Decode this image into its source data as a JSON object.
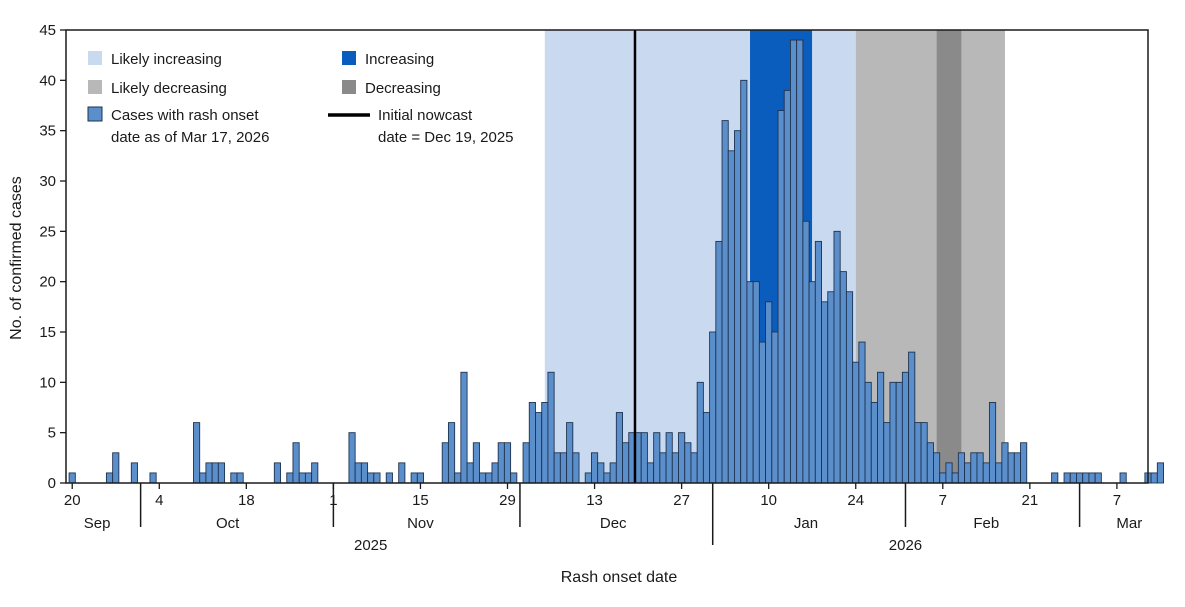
{
  "chart_data": {
    "type": "bar",
    "xlabel": "Rash onset date",
    "ylabel": "No. of confirmed cases",
    "ylim": [
      0,
      45
    ],
    "y_ticks": [
      0,
      5,
      10,
      15,
      20,
      25,
      30,
      35,
      40,
      45
    ],
    "x_range": [
      "2025-09-19",
      "2026-03-12"
    ],
    "x_ticks": [
      {
        "date": "2025-09-20",
        "label": "20"
      },
      {
        "date": "2025-10-04",
        "label": "4"
      },
      {
        "date": "2025-10-18",
        "label": "18"
      },
      {
        "date": "2025-11-01",
        "label": "1"
      },
      {
        "date": "2025-11-15",
        "label": "15"
      },
      {
        "date": "2025-11-29",
        "label": "29"
      },
      {
        "date": "2025-12-13",
        "label": "13"
      },
      {
        "date": "2025-12-27",
        "label": "27"
      },
      {
        "date": "2026-01-10",
        "label": "10"
      },
      {
        "date": "2026-01-24",
        "label": "24"
      },
      {
        "date": "2026-02-07",
        "label": "7"
      },
      {
        "date": "2026-02-21",
        "label": "21"
      },
      {
        "date": "2026-03-07",
        "label": "7"
      }
    ],
    "month_labels": [
      {
        "date": "2025-09-24",
        "label": "Sep"
      },
      {
        "date": "2025-10-15",
        "label": "Oct"
      },
      {
        "date": "2025-11-15",
        "label": "Nov"
      },
      {
        "date": "2025-12-16",
        "label": "Dec"
      },
      {
        "date": "2026-01-16",
        "label": "Jan"
      },
      {
        "date": "2026-02-14",
        "label": "Feb"
      },
      {
        "date": "2026-03-09",
        "label": "Mar"
      }
    ],
    "month_boundaries": [
      "2025-10-01",
      "2025-11-01",
      "2025-12-01",
      "2026-01-01",
      "2026-02-01",
      "2026-03-01"
    ],
    "year_labels": [
      {
        "date": "2025-11-07",
        "label": "2025"
      },
      {
        "date": "2026-02-01",
        "label": "2026"
      }
    ],
    "year_boundary": "2026-01-01",
    "nowcast_date": "2025-12-19",
    "trend_periods": [
      {
        "category": "likely_increasing",
        "start": "2025-12-05",
        "end": "2026-01-07"
      },
      {
        "category": "increasing",
        "start": "2026-01-07",
        "end": "2026-01-17"
      },
      {
        "category": "likely_increasing",
        "start": "2026-01-17",
        "end": "2026-01-24"
      },
      {
        "category": "likely_decreasing",
        "start": "2026-01-24",
        "end": "2026-02-06"
      },
      {
        "category": "decreasing",
        "start": "2026-02-06",
        "end": "2026-02-10"
      },
      {
        "category": "likely_decreasing",
        "start": "2026-02-10",
        "end": "2026-02-17"
      }
    ],
    "series": [
      {
        "name": "Cases with rash onset date as of Mar 17, 2026",
        "start_date": "2025-09-20",
        "values": [
          1,
          0,
          0,
          0,
          0,
          0,
          1,
          3,
          0,
          0,
          2,
          0,
          0,
          1,
          0,
          0,
          0,
          0,
          0,
          0,
          6,
          1,
          2,
          2,
          2,
          0,
          1,
          1,
          0,
          0,
          0,
          0,
          0,
          2,
          0,
          1,
          4,
          1,
          1,
          2,
          0,
          0,
          0,
          0,
          0,
          5,
          2,
          2,
          1,
          1,
          0,
          1,
          0,
          2,
          0,
          1,
          1,
          0,
          0,
          0,
          4,
          6,
          1,
          11,
          2,
          4,
          1,
          1,
          2,
          4,
          4,
          1,
          0,
          4,
          8,
          7,
          8,
          11,
          3,
          3,
          6,
          3,
          0,
          1,
          3,
          2,
          1,
          2,
          7,
          4,
          5,
          5,
          5,
          2,
          5,
          3,
          5,
          3,
          5,
          4,
          3,
          10,
          7,
          15,
          24,
          36,
          33,
          35,
          40,
          20,
          20,
          14,
          18,
          15,
          37,
          39,
          44,
          44,
          26,
          20,
          24,
          18,
          19,
          25,
          21,
          19,
          12,
          14,
          10,
          8,
          11,
          6,
          10,
          10,
          11,
          13,
          6,
          6,
          4,
          3,
          1,
          2,
          1,
          3,
          2,
          3,
          3,
          2,
          8,
          2,
          4,
          3,
          3,
          4,
          0,
          0,
          0,
          0,
          1,
          0,
          1,
          1,
          1,
          1,
          1,
          1,
          0,
          0,
          0,
          1,
          0,
          0,
          0,
          1,
          1,
          2
        ]
      }
    ]
  },
  "legend": {
    "likely_increasing": "Likely increasing",
    "increasing": "Increasing",
    "likely_decreasing": "Likely decreasing",
    "decreasing": "Decreasing",
    "cases_line1": "Cases with rash onset",
    "cases_line2": "date as of Mar 17, 2026",
    "nowcast_line1": "Initial nowcast",
    "nowcast_line2": "date = Dec 19, 2025"
  },
  "colors": {
    "likely_increasing": "#c9daf0",
    "increasing": "#0a5cbd",
    "likely_decreasing": "#b8b8b8",
    "decreasing": "#8a8a8a",
    "bar_fill": "#5b8fcc",
    "bar_stroke": "#1e3350",
    "nowcast": "#000000"
  }
}
